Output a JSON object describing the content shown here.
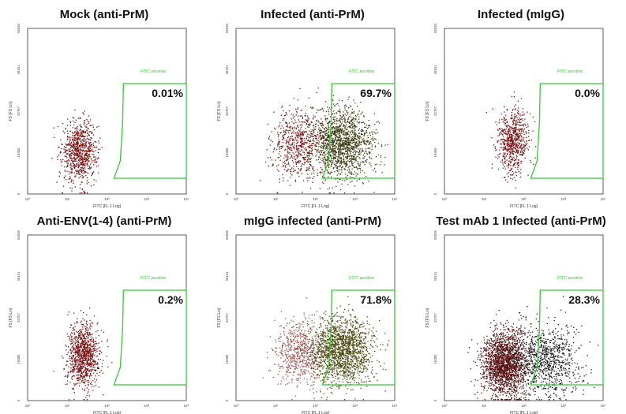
{
  "colors": {
    "gate": "#33cc33",
    "gate_label": "#33cc33",
    "dot_negative": "#7a1010",
    "dot_positive": "#2a2a1a",
    "axis": "#333333",
    "frame": "#333333"
  },
  "chart_data": [
    {
      "type": "scatter",
      "title": "Mock (anti-PrM)",
      "xlabel": "FITC [FL 1 Log]",
      "ylabel": "FS [FS Lin]",
      "x_scale": "log",
      "xlim": [
        1,
        10000
      ],
      "x_ticks": [
        "10^0",
        "10^1",
        "10^2",
        "10^3",
        "10^4"
      ],
      "y_ticks": [
        "65535",
        "49151",
        "32767",
        "16383",
        "0"
      ],
      "gate_label": "FITC positive",
      "percent_label": "0.01%",
      "gate_x_range": [
        150,
        10000
      ],
      "populations": [
        {
          "name": "negative",
          "n": 850,
          "x_center_log10": 1.3,
          "x_sd_log10": 0.22,
          "y_center": 17000,
          "y_sd": 6000,
          "color": "#7a1010"
        }
      ]
    },
    {
      "type": "scatter",
      "title": "Infected (anti-PrM)",
      "xlabel": "FITC [FL 1 Log]",
      "ylabel": "FS [FS Lin]",
      "x_scale": "log",
      "xlim": [
        1,
        10000
      ],
      "x_ticks": [
        "10^0",
        "10^1",
        "10^2",
        "10^3",
        "10^4"
      ],
      "y_ticks": [
        "65535",
        "49151",
        "32767",
        "16383",
        "0"
      ],
      "gate_label": "FITC positive",
      "percent_label": "69.7%",
      "gate_x_range": [
        150,
        10000
      ],
      "populations": [
        {
          "name": "negative",
          "n": 650,
          "x_center_log10": 1.6,
          "x_sd_log10": 0.35,
          "y_center": 19500,
          "y_sd": 7000,
          "color": "#7a1010"
        },
        {
          "name": "positive",
          "n": 1500,
          "x_center_log10": 2.65,
          "x_sd_log10": 0.4,
          "y_center": 20000,
          "y_sd": 7000,
          "color": "#3a3a10"
        }
      ]
    },
    {
      "type": "scatter",
      "title": "Infected (mIgG)",
      "xlabel": "FITC [FL 1 Log]",
      "ylabel": "FS [FS Lin]",
      "x_scale": "log",
      "xlim": [
        1,
        10000
      ],
      "x_ticks": [
        "10^0",
        "10^1",
        "10^2",
        "10^3",
        "10^4"
      ],
      "y_ticks": [
        "65535",
        "49151",
        "32767",
        "16383",
        "0"
      ],
      "gate_label": "FITC positive",
      "percent_label": "0.0%",
      "gate_x_range": [
        150,
        10000
      ],
      "populations": [
        {
          "name": "negative",
          "n": 700,
          "x_center_log10": 1.7,
          "x_sd_log10": 0.2,
          "y_center": 21000,
          "y_sd": 6500,
          "color": "#7a1010"
        }
      ]
    },
    {
      "type": "scatter",
      "title": "Anti-ENV(1-4) (anti-PrM)",
      "xlabel": "FITC [FL 1 Log]",
      "ylabel": "FS [FS Lin]",
      "x_scale": "log",
      "xlim": [
        1,
        10000
      ],
      "x_ticks": [
        "10^0",
        "10^1",
        "10^2",
        "10^3",
        "10^4"
      ],
      "y_ticks": [
        "65535",
        "49151",
        "32767",
        "16383",
        "0"
      ],
      "gate_label": "FITC positive",
      "percent_label": "0.2%",
      "gate_x_range": [
        150,
        10000
      ],
      "populations": [
        {
          "name": "negative",
          "n": 1000,
          "x_center_log10": 1.4,
          "x_sd_log10": 0.2,
          "y_center": 18000,
          "y_sd": 6500,
          "color": "#7a1010"
        }
      ]
    },
    {
      "type": "scatter",
      "title": "mIgG infected (anti-PrM)",
      "xlabel": "FITC [FL 1 Log]",
      "ylabel": "FS [FS Lin]",
      "x_scale": "log",
      "xlim": [
        1,
        10000
      ],
      "x_ticks": [
        "10^0",
        "10^1",
        "10^2",
        "10^3",
        "10^4"
      ],
      "y_ticks": [
        "65535",
        "49151",
        "32767",
        "16383",
        "0"
      ],
      "gate_label": "FITC positive",
      "percent_label": "71.8%",
      "gate_x_range": [
        150,
        10000
      ],
      "populations": [
        {
          "name": "negative",
          "n": 650,
          "x_center_log10": 1.6,
          "x_sd_log10": 0.35,
          "y_center": 19000,
          "y_sd": 6500,
          "color": "#a05050"
        },
        {
          "name": "positive",
          "n": 1700,
          "x_center_log10": 2.65,
          "x_sd_log10": 0.38,
          "y_center": 20000,
          "y_sd": 6500,
          "color": "#4a4a10"
        }
      ]
    },
    {
      "type": "scatter",
      "title": "Test mAb 1  Infected (anti-PrM)",
      "xlabel": "FITC [FL 1 Log]",
      "ylabel": "FS [FS Lin]",
      "x_scale": "log",
      "xlim": [
        1,
        10000
      ],
      "x_ticks": [
        "10^0",
        "10^1",
        "10^2",
        "10^3",
        "10^4"
      ],
      "y_ticks": [
        "65535",
        "49151",
        "32767",
        "16383",
        "0"
      ],
      "gate_label": "FITC positive",
      "percent_label": "28.3%",
      "gate_x_range": [
        150,
        10000
      ],
      "populations": [
        {
          "name": "negative",
          "n": 1900,
          "x_center_log10": 1.5,
          "x_sd_log10": 0.28,
          "y_center": 15000,
          "y_sd": 6500,
          "color": "#5a1010"
        },
        {
          "name": "positive",
          "n": 1000,
          "x_center_log10": 2.5,
          "x_sd_log10": 0.45,
          "y_center": 16000,
          "y_sd": 7000,
          "color": "#1a1a1a"
        }
      ]
    }
  ]
}
